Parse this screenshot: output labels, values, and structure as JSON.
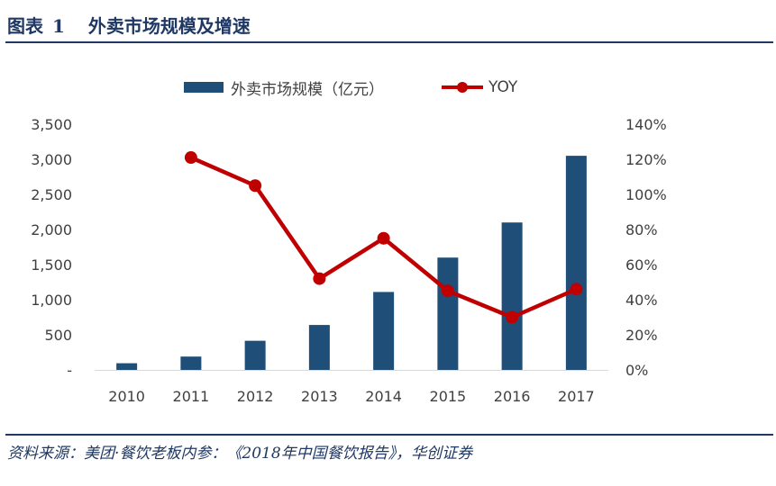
{
  "figure": {
    "label": "图表",
    "number": "1",
    "title": "外卖市场规模及增速",
    "source": "资料来源：美团·餐饮老板内参：《2018年中国餐饮报告》，华创证券"
  },
  "colors": {
    "bar": "#1f4e79",
    "line": "#c00000",
    "axis_text": "#404040",
    "rule": "#1f3864"
  },
  "chart_data": {
    "type": "bar",
    "categories": [
      "2010",
      "2011",
      "2012",
      "2013",
      "2014",
      "2015",
      "2016",
      "2017"
    ],
    "series": [
      {
        "name": "外卖市场规模（亿元）",
        "type": "bar",
        "axis": "left",
        "values": [
          95,
          190,
          415,
          640,
          1110,
          1600,
          2100,
          3050
        ]
      },
      {
        "name": "YOY",
        "type": "line",
        "axis": "right",
        "values": [
          null,
          1.21,
          1.05,
          0.52,
          0.75,
          0.45,
          0.3,
          0.46
        ]
      }
    ],
    "y_left": {
      "min": 0,
      "max": 3500,
      "ticks": [
        0,
        500,
        1000,
        1500,
        2000,
        2500,
        3000,
        3500
      ],
      "tick_labels": [
        "-",
        "500",
        "1,000",
        "1,500",
        "2,000",
        "2,500",
        "3,000",
        "3,500"
      ]
    },
    "y_right": {
      "min": 0,
      "max": 1.4,
      "ticks": [
        0,
        0.2,
        0.4,
        0.6,
        0.8,
        1.0,
        1.2,
        1.4
      ],
      "tick_labels": [
        "0%",
        "20%",
        "40%",
        "60%",
        "80%",
        "100%",
        "120%",
        "140%"
      ]
    },
    "legend_position": "top-center",
    "grid": false
  }
}
